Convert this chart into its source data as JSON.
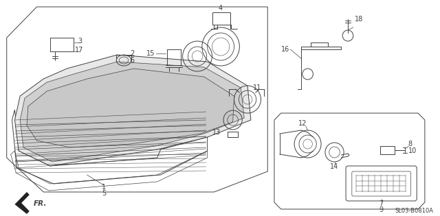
{
  "bg_color": "#ffffff",
  "line_color": "#404040",
  "diagram_code": "SL03-B0810A",
  "fig_width": 6.4,
  "fig_height": 3.15,
  "dpi": 100
}
